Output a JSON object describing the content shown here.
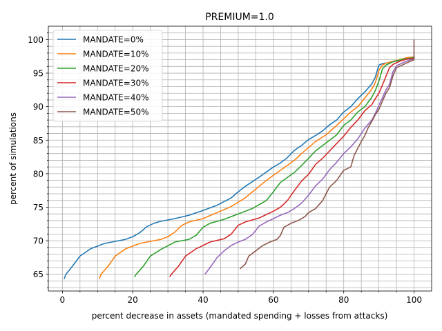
{
  "chart_data": {
    "type": "line",
    "title": "PREMIUM=1.0",
    "xlabel": "percent decrease in assets (mandated spending + losses from attacks)",
    "ylabel": "percent of simulations",
    "xlim": [
      -4,
      105
    ],
    "ylim": [
      62.5,
      102
    ],
    "x_ticks": [
      0,
      20,
      40,
      60,
      80,
      100
    ],
    "y_ticks": [
      65,
      70,
      75,
      80,
      85,
      90,
      95,
      100
    ],
    "grid": true,
    "legend_position": "top-left",
    "series": [
      {
        "name": "MANDATE=0%",
        "color": "#1f77b4",
        "points": [
          [
            0.5,
            64.3
          ],
          [
            1,
            65
          ],
          [
            3,
            66.3
          ],
          [
            5,
            67.7
          ],
          [
            8,
            68.8
          ],
          [
            12,
            69.6
          ],
          [
            18,
            70.2
          ],
          [
            20,
            70.6
          ],
          [
            22,
            71.2
          ],
          [
            24,
            72.1
          ],
          [
            26,
            72.6
          ],
          [
            28,
            72.9
          ],
          [
            32,
            73.3
          ],
          [
            36,
            73.8
          ],
          [
            40,
            74.5
          ],
          [
            44,
            75.3
          ],
          [
            48,
            76.4
          ],
          [
            50,
            77.3
          ],
          [
            52,
            78.1
          ],
          [
            56,
            79.5
          ],
          [
            60,
            81
          ],
          [
            62,
            81.6
          ],
          [
            64,
            82.4
          ],
          [
            66,
            83.5
          ],
          [
            68,
            84.2
          ],
          [
            70,
            85.1
          ],
          [
            72,
            85.7
          ],
          [
            74,
            86.4
          ],
          [
            76,
            87.3
          ],
          [
            78,
            88
          ],
          [
            80,
            89.2
          ],
          [
            82,
            90
          ],
          [
            84,
            91.2
          ],
          [
            86,
            92.2
          ],
          [
            88,
            93.4
          ],
          [
            89,
            94.4
          ],
          [
            90,
            96.2
          ],
          [
            91,
            96.4
          ],
          [
            95,
            96.8
          ],
          [
            98,
            97.3
          ],
          [
            100,
            97.4
          ],
          [
            100,
            97.6
          ]
        ]
      },
      {
        "name": "MANDATE=10%",
        "color": "#ff7f0e",
        "points": [
          [
            10.5,
            64.3
          ],
          [
            11,
            65
          ],
          [
            13,
            66.2
          ],
          [
            15,
            67.7
          ],
          [
            18,
            68.8
          ],
          [
            22,
            69.6
          ],
          [
            28,
            70.2
          ],
          [
            30,
            70.6
          ],
          [
            32,
            71.3
          ],
          [
            34,
            72.3
          ],
          [
            36,
            72.8
          ],
          [
            40,
            73.3
          ],
          [
            44,
            74.2
          ],
          [
            48,
            75.1
          ],
          [
            52,
            76.4
          ],
          [
            55,
            77.7
          ],
          [
            58,
            79
          ],
          [
            62,
            80.5
          ],
          [
            66,
            82
          ],
          [
            68,
            83
          ],
          [
            72,
            84.8
          ],
          [
            75,
            85.8
          ],
          [
            78,
            87.2
          ],
          [
            80,
            88.2
          ],
          [
            82,
            89.2
          ],
          [
            84,
            90
          ],
          [
            86,
            91.3
          ],
          [
            88,
            92.6
          ],
          [
            89,
            93.6
          ],
          [
            90,
            95.4
          ],
          [
            91,
            96.2
          ],
          [
            92,
            96.5
          ],
          [
            95,
            96.9
          ],
          [
            98,
            97.3
          ],
          [
            100,
            97.4
          ],
          [
            100,
            97.5
          ]
        ]
      },
      {
        "name": "MANDATE=20%",
        "color": "#2ca02c",
        "points": [
          [
            20.5,
            64.6
          ],
          [
            21,
            65
          ],
          [
            23,
            66.2
          ],
          [
            25,
            67.7
          ],
          [
            28,
            68.7
          ],
          [
            32,
            69.8
          ],
          [
            36,
            70.2
          ],
          [
            38,
            70.8
          ],
          [
            40,
            72
          ],
          [
            42,
            72.6
          ],
          [
            46,
            73.2
          ],
          [
            50,
            74
          ],
          [
            54,
            74.8
          ],
          [
            58,
            76
          ],
          [
            60,
            77.3
          ],
          [
            62,
            78.7
          ],
          [
            66,
            80.2
          ],
          [
            68,
            81.2
          ],
          [
            72,
            83.4
          ],
          [
            75,
            84.6
          ],
          [
            78,
            85.8
          ],
          [
            80,
            87.2
          ],
          [
            82,
            88
          ],
          [
            84,
            89.2
          ],
          [
            86,
            90
          ],
          [
            88,
            91.4
          ],
          [
            89,
            92.4
          ],
          [
            90,
            93.8
          ],
          [
            91,
            95.6
          ],
          [
            92,
            96.2
          ],
          [
            94,
            96.7
          ],
          [
            97,
            97.1
          ],
          [
            100,
            97.3
          ],
          [
            100,
            97.4
          ]
        ]
      },
      {
        "name": "MANDATE=30%",
        "color": "#d62728",
        "points": [
          [
            30.5,
            64.6
          ],
          [
            31,
            65
          ],
          [
            33,
            66.2
          ],
          [
            35,
            67.7
          ],
          [
            38,
            68.8
          ],
          [
            42,
            69.8
          ],
          [
            46,
            70.3
          ],
          [
            48,
            71
          ],
          [
            50,
            72.3
          ],
          [
            52,
            72.8
          ],
          [
            56,
            73.4
          ],
          [
            60,
            74.4
          ],
          [
            62,
            75
          ],
          [
            64,
            76
          ],
          [
            66,
            77.5
          ],
          [
            68,
            78.9
          ],
          [
            70,
            79.9
          ],
          [
            72,
            81.4
          ],
          [
            74,
            82.3
          ],
          [
            76,
            83.4
          ],
          [
            78,
            84.5
          ],
          [
            80,
            85.6
          ],
          [
            82,
            86.9
          ],
          [
            84,
            88
          ],
          [
            86,
            89.4
          ],
          [
            88,
            90.3
          ],
          [
            89,
            91.2
          ],
          [
            90,
            92
          ],
          [
            91,
            93.2
          ],
          [
            92,
            94.5
          ],
          [
            93,
            95.8
          ],
          [
            94,
            96.3
          ],
          [
            96,
            96.8
          ],
          [
            98,
            97.1
          ],
          [
            100,
            97.2
          ],
          [
            100,
            97.3
          ]
        ]
      },
      {
        "name": "MANDATE=40%",
        "color": "#9467bd",
        "points": [
          [
            40.5,
            65
          ],
          [
            42,
            66
          ],
          [
            44,
            67.5
          ],
          [
            46,
            68.5
          ],
          [
            48,
            69.3
          ],
          [
            50,
            69.8
          ],
          [
            52,
            70.2
          ],
          [
            54,
            70.9
          ],
          [
            56,
            72.2
          ],
          [
            58,
            72.8
          ],
          [
            60,
            73.3
          ],
          [
            62,
            73.8
          ],
          [
            64,
            74.2
          ],
          [
            66,
            74.8
          ],
          [
            68,
            75.6
          ],
          [
            70,
            76.8
          ],
          [
            72,
            78.2
          ],
          [
            74,
            79.2
          ],
          [
            76,
            80.6
          ],
          [
            78,
            81.7
          ],
          [
            80,
            83
          ],
          [
            82,
            84
          ],
          [
            84,
            85.2
          ],
          [
            86,
            86.8
          ],
          [
            88,
            88
          ],
          [
            89,
            89
          ],
          [
            90,
            90.2
          ],
          [
            91,
            91.3
          ],
          [
            92,
            92.5
          ],
          [
            93,
            93.3
          ],
          [
            94,
            95.2
          ],
          [
            95,
            96.1
          ],
          [
            97,
            96.6
          ],
          [
            99,
            97
          ],
          [
            100,
            97.1
          ],
          [
            100,
            97.2
          ]
        ]
      },
      {
        "name": "MANDATE=50%",
        "color": "#8c564b",
        "points": [
          [
            50.5,
            65.8
          ],
          [
            52,
            66.5
          ],
          [
            53,
            67.7
          ],
          [
            55,
            68.5
          ],
          [
            57,
            69.3
          ],
          [
            59,
            69.8
          ],
          [
            61,
            70.2
          ],
          [
            62,
            70.8
          ],
          [
            63,
            72
          ],
          [
            65,
            72.6
          ],
          [
            67,
            73
          ],
          [
            69,
            73.6
          ],
          [
            70,
            74.2
          ],
          [
            72,
            74.8
          ],
          [
            74,
            76
          ],
          [
            75,
            77
          ],
          [
            76,
            78
          ],
          [
            78,
            79
          ],
          [
            80,
            80.5
          ],
          [
            82,
            81
          ],
          [
            83,
            82.8
          ],
          [
            84,
            83.8
          ],
          [
            85,
            84.8
          ],
          [
            86,
            85.7
          ],
          [
            87,
            86.9
          ],
          [
            88,
            87.8
          ],
          [
            89,
            88.8
          ],
          [
            90,
            89.6
          ],
          [
            91,
            90.8
          ],
          [
            92,
            92
          ],
          [
            93,
            92.8
          ],
          [
            94,
            94.6
          ],
          [
            95,
            95.8
          ],
          [
            97,
            96.3
          ],
          [
            99,
            96.8
          ],
          [
            100,
            97
          ],
          [
            100,
            100
          ]
        ]
      }
    ]
  }
}
